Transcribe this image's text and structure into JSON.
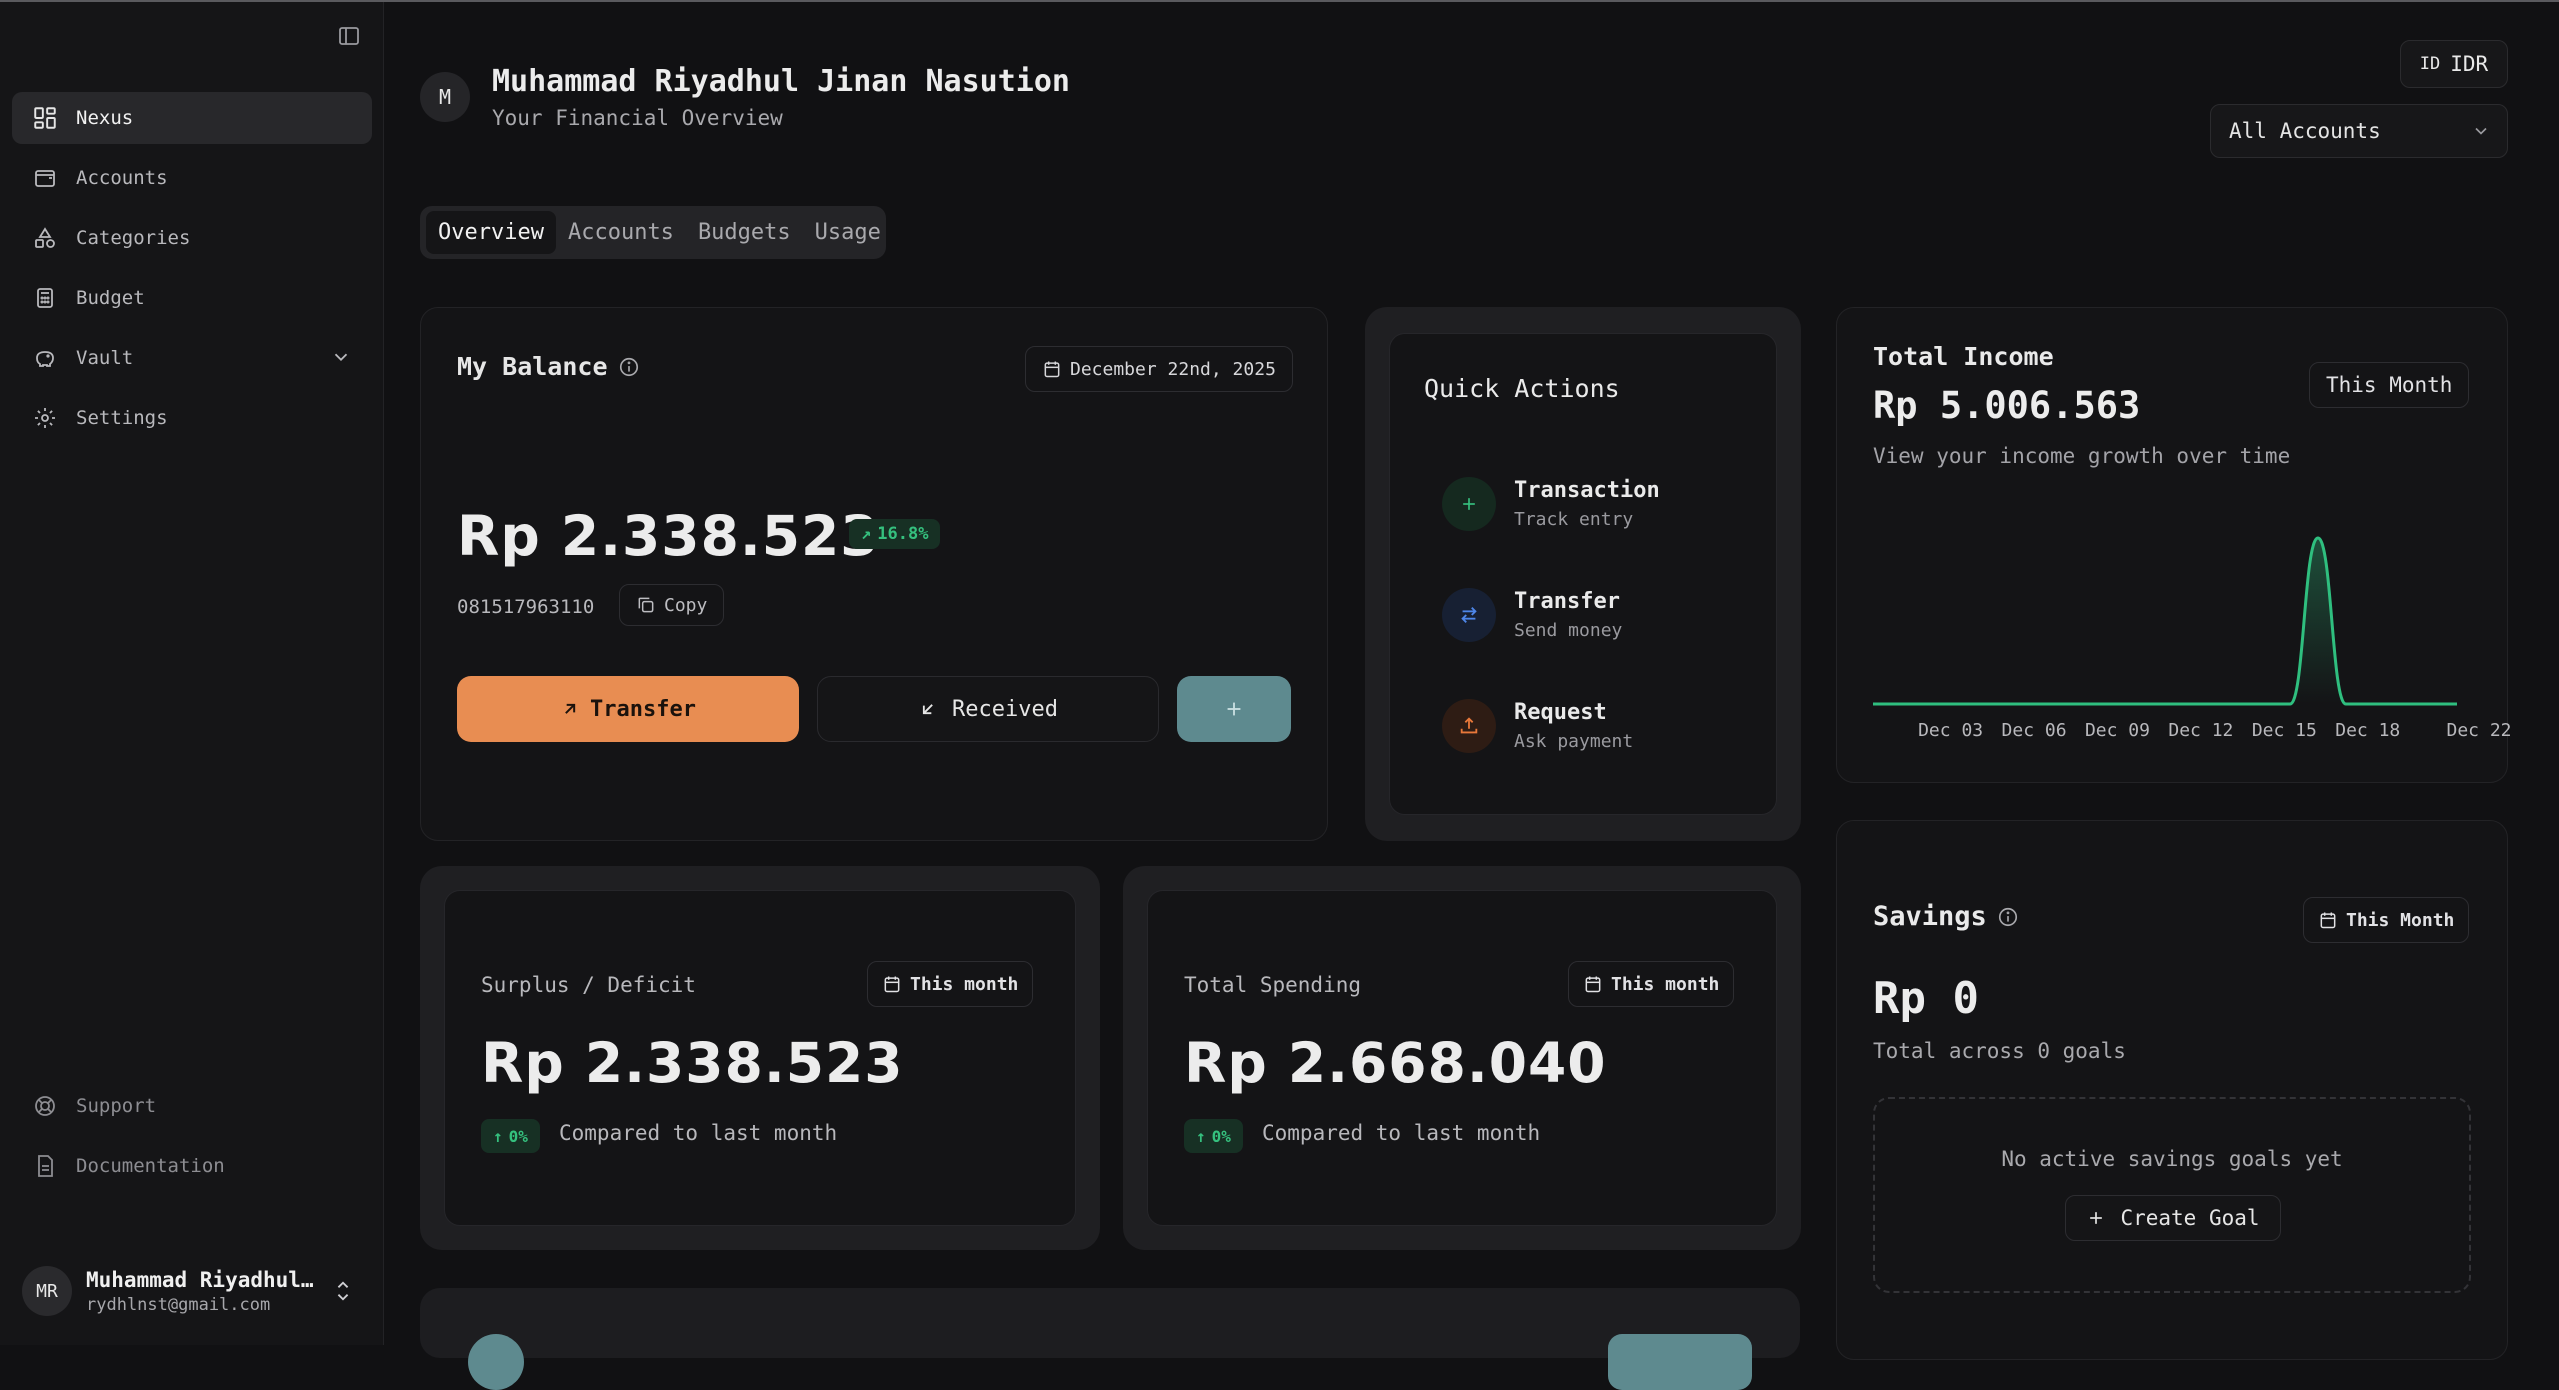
{
  "sidebar": {
    "items": [
      {
        "label": "Nexus",
        "icon": "grid-icon"
      },
      {
        "label": "Accounts",
        "icon": "wallet-icon"
      },
      {
        "label": "Categories",
        "icon": "shapes-icon"
      },
      {
        "label": "Budget",
        "icon": "calculator-icon"
      },
      {
        "label": "Vault",
        "icon": "piggy-bank-icon"
      },
      {
        "label": "Settings",
        "icon": "gear-icon"
      }
    ],
    "bottom": [
      {
        "label": "Support",
        "icon": "lifebuoy-icon"
      },
      {
        "label": "Documentation",
        "icon": "document-icon"
      }
    ],
    "user": {
      "initials": "MR",
      "name": "Muhammad Riyadhul…",
      "email": "rydhlnst@gmail.com"
    }
  },
  "header": {
    "avatar": "M",
    "name": "Muhammad Riyadhul Jinan Nasution",
    "subtitle": "Your Financial Overview",
    "currency_flag": "ID",
    "currency": "IDR",
    "account_filter": "All Accounts"
  },
  "tabs": [
    "Overview",
    "Accounts",
    "Budgets",
    "Usage"
  ],
  "balance": {
    "title": "My Balance",
    "date": "December 22nd, 2025",
    "amount": "Rp 2.338.523",
    "change": "16.8%",
    "phone": "081517963110",
    "copy_label": "Copy",
    "transfer_label": "Transfer",
    "received_label": "Received"
  },
  "quick_actions": {
    "title": "Quick Actions",
    "items": [
      {
        "label": "Transaction",
        "sub": "Track entry"
      },
      {
        "label": "Transfer",
        "sub": "Send money"
      },
      {
        "label": "Request",
        "sub": "Ask payment"
      }
    ]
  },
  "income": {
    "title": "Total Income",
    "amount": "Rp 5.006.563",
    "period": "This Month",
    "description": "View your income growth over time"
  },
  "chart_data": {
    "type": "area",
    "x_ticks": [
      "Dec 03",
      "Dec 06",
      "Dec 09",
      "Dec 12",
      "Dec 15",
      "Dec 18",
      "Dec 22"
    ],
    "x": [
      1,
      2,
      3,
      4,
      5,
      6,
      7,
      8,
      9,
      10,
      11,
      12,
      13,
      14,
      15,
      16,
      17,
      18,
      19,
      20,
      21,
      22
    ],
    "values": [
      0,
      0,
      0,
      0,
      0,
      0,
      0,
      0,
      0,
      0,
      0,
      0,
      0,
      0,
      0,
      0,
      5006563,
      0,
      0,
      0,
      0,
      0
    ],
    "color": "#2fbf7f",
    "grid": false
  },
  "surplus": {
    "label": "Surplus / Deficit",
    "period": "This month",
    "amount": "Rp 2.338.523",
    "change": "0%",
    "compare": "Compared to last month"
  },
  "spending": {
    "label": "Total Spending",
    "period": "This month",
    "amount": "Rp 2.668.040",
    "change": "0%",
    "compare": "Compared to last month"
  },
  "savings": {
    "title": "Savings",
    "period": "This Month",
    "amount": "Rp 0",
    "total": "Total across 0 goals",
    "empty": "No active savings goals yet",
    "create_label": "Create Goal"
  },
  "colors": {
    "accent_orange": "#e88d52",
    "accent_teal": "#5e8a8f",
    "positive": "#35c07e"
  }
}
